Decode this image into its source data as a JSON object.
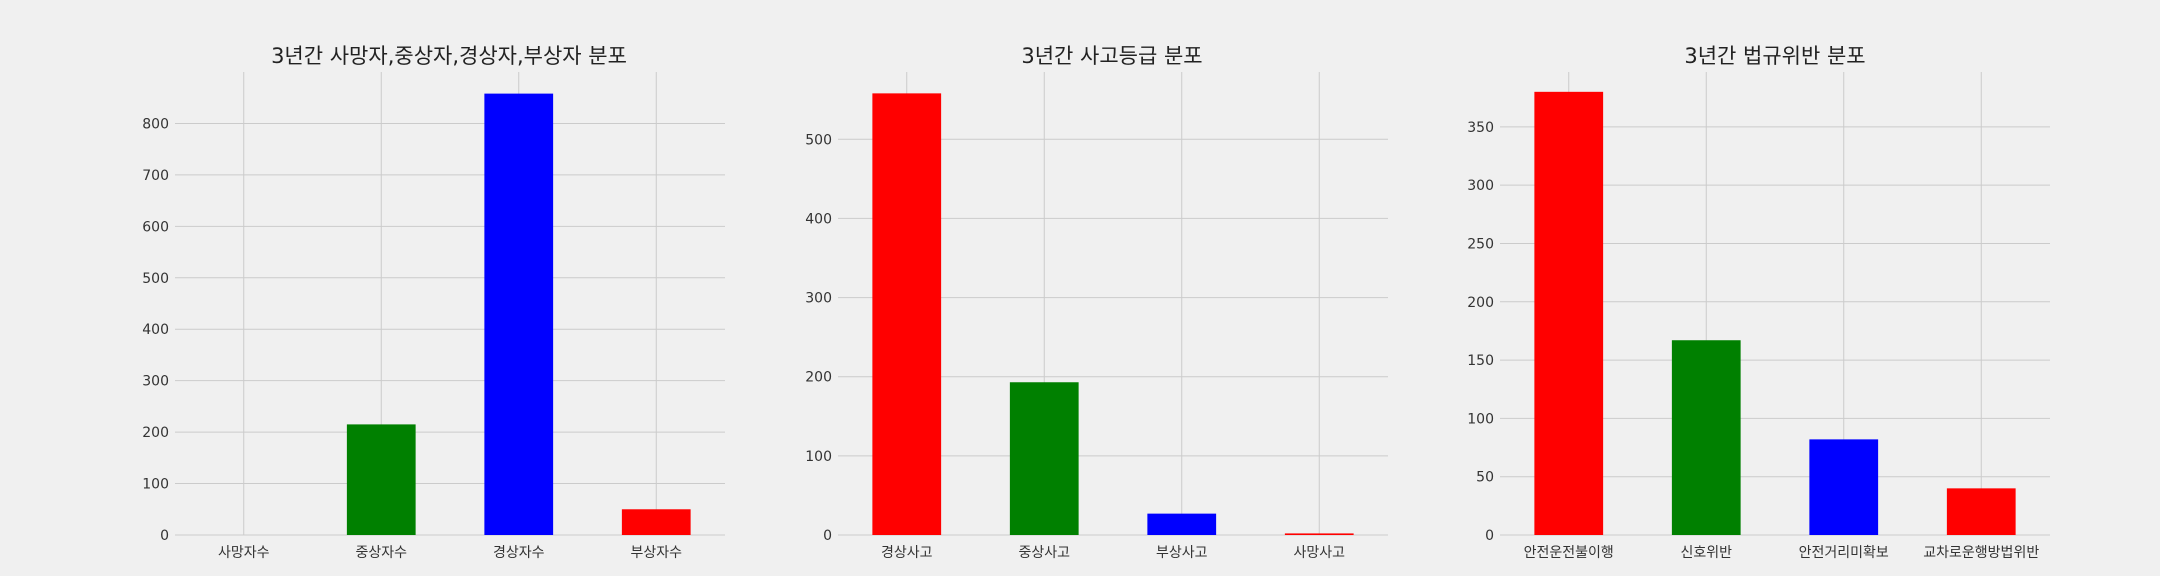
{
  "chart_data": [
    {
      "type": "bar",
      "title": "3년간 사망자,중상자,경상자,부상자 분포",
      "categories": [
        "사망자수",
        "중상자수",
        "경상자수",
        "부상자수"
      ],
      "values": [
        0,
        215,
        858,
        50
      ],
      "colors": [
        "#ff0000",
        "#008000",
        "#0000ff",
        "#ff0000"
      ],
      "yticks": [
        0,
        100,
        200,
        300,
        400,
        500,
        600,
        700,
        800
      ],
      "ylim": [
        0,
        900
      ],
      "xlabel": "",
      "ylabel": "",
      "grid": true
    },
    {
      "type": "bar",
      "title": "3년간 사고등급 분포",
      "categories": [
        "경상사고",
        "중상사고",
        "부상사고",
        "사망사고"
      ],
      "values": [
        558,
        193,
        27,
        2
      ],
      "colors": [
        "#ff0000",
        "#008000",
        "#0000ff",
        "#ff0000"
      ],
      "yticks": [
        0,
        100,
        200,
        300,
        400,
        500
      ],
      "ylim": [
        0,
        585
      ],
      "xlabel": "",
      "ylabel": "",
      "grid": true
    },
    {
      "type": "bar",
      "title": "3년간 법규위반 분포",
      "categories": [
        "안전운전불이행",
        "신호위반",
        "안전거리미확보",
        "교차로운행방법위반"
      ],
      "values": [
        380,
        167,
        82,
        40
      ],
      "colors": [
        "#ff0000",
        "#008000",
        "#0000ff",
        "#ff0000"
      ],
      "yticks": [
        0,
        50,
        100,
        150,
        200,
        250,
        300,
        350
      ],
      "ylim": [
        0,
        397
      ],
      "xlabel": "",
      "ylabel": "",
      "grid": true
    }
  ]
}
